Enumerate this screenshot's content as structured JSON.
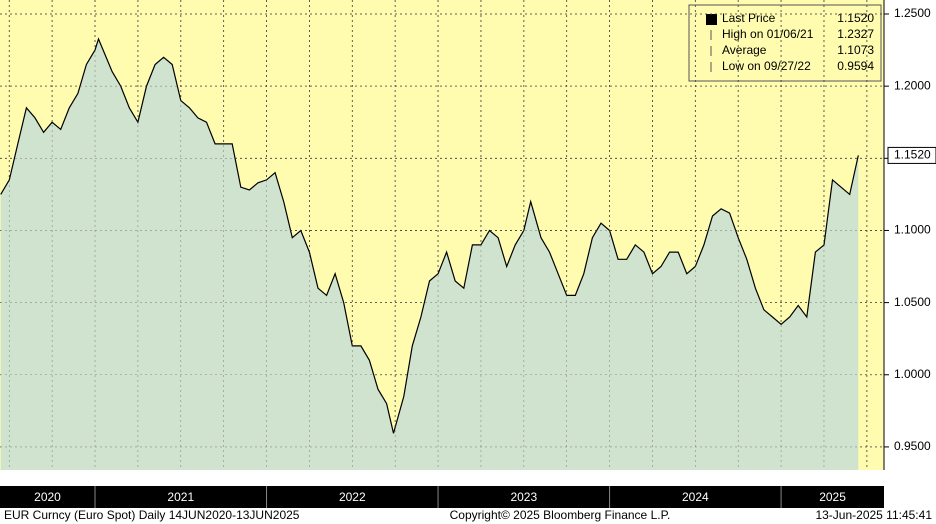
{
  "chart_data": {
    "type": "area",
    "x": [
      2020.45,
      2020.5,
      2020.55,
      2020.6,
      2020.65,
      2020.7,
      2020.75,
      2020.8,
      2020.85,
      2020.9,
      2020.95,
      2021.0,
      2021.02,
      2021.1,
      2021.15,
      2021.2,
      2021.25,
      2021.3,
      2021.35,
      2021.4,
      2021.45,
      2021.5,
      2021.55,
      2021.6,
      2021.65,
      2021.7,
      2021.75,
      2021.8,
      2021.85,
      2021.9,
      2021.95,
      2022.0,
      2022.05,
      2022.1,
      2022.15,
      2022.2,
      2022.25,
      2022.3,
      2022.35,
      2022.4,
      2022.45,
      2022.5,
      2022.55,
      2022.6,
      2022.65,
      2022.7,
      2022.74,
      2022.8,
      2022.85,
      2022.9,
      2022.95,
      2023.0,
      2023.05,
      2023.1,
      2023.15,
      2023.2,
      2023.25,
      2023.3,
      2023.35,
      2023.4,
      2023.45,
      2023.5,
      2023.54,
      2023.6,
      2023.65,
      2023.7,
      2023.75,
      2023.8,
      2023.85,
      2023.9,
      2023.95,
      2024.0,
      2024.05,
      2024.1,
      2024.15,
      2024.2,
      2024.25,
      2024.3,
      2024.35,
      2024.4,
      2024.45,
      2024.5,
      2024.55,
      2024.6,
      2024.65,
      2024.7,
      2024.75,
      2024.8,
      2024.85,
      2024.9,
      2024.95,
      2025.0,
      2025.05,
      2025.1,
      2025.15,
      2025.2,
      2025.25,
      2025.3,
      2025.35,
      2025.4,
      2025.45
    ],
    "series": [
      {
        "name": "Last Price",
        "color": "#000000",
        "fill": "#cfe3cf",
        "values": [
          1.125,
          1.135,
          1.16,
          1.185,
          1.178,
          1.168,
          1.175,
          1.17,
          1.185,
          1.195,
          1.215,
          1.225,
          1.2327,
          1.21,
          1.2,
          1.185,
          1.175,
          1.2,
          1.215,
          1.22,
          1.215,
          1.19,
          1.185,
          1.178,
          1.175,
          1.16,
          1.16,
          1.16,
          1.13,
          1.128,
          1.133,
          1.135,
          1.14,
          1.12,
          1.095,
          1.1,
          1.085,
          1.06,
          1.055,
          1.07,
          1.05,
          1.02,
          1.02,
          1.01,
          0.99,
          0.98,
          0.9594,
          0.985,
          1.02,
          1.04,
          1.065,
          1.07,
          1.085,
          1.065,
          1.06,
          1.09,
          1.09,
          1.1,
          1.095,
          1.075,
          1.09,
          1.1,
          1.12,
          1.095,
          1.085,
          1.07,
          1.055,
          1.055,
          1.07,
          1.095,
          1.105,
          1.1,
          1.08,
          1.08,
          1.09,
          1.085,
          1.07,
          1.075,
          1.085,
          1.085,
          1.07,
          1.075,
          1.09,
          1.11,
          1.115,
          1.112,
          1.095,
          1.08,
          1.06,
          1.045,
          1.04,
          1.035,
          1.04,
          1.048,
          1.04,
          1.085,
          1.09,
          1.135,
          1.13,
          1.125,
          1.152
        ]
      }
    ],
    "xlim": [
      2020.446,
      2025.6
    ],
    "xticks": [
      2020.5,
      2020.75,
      2021,
      2021.25,
      2021.5,
      2021.75,
      2022,
      2022.25,
      2022.5,
      2022.75,
      2023,
      2023.25,
      2023.5,
      2023.75,
      2024,
      2024.25,
      2024.5,
      2024.75,
      2025,
      2025.25,
      2025.5
    ],
    "categories": [
      "2020",
      "2021",
      "2022",
      "2023",
      "2024",
      "2025"
    ],
    "ylim": [
      0.934,
      1.2597
    ],
    "yticks": [
      {
        "value": 0.95,
        "label": "0.9500"
      },
      {
        "value": 1.0,
        "label": "1.0000"
      },
      {
        "value": 1.05,
        "label": "1.0500"
      },
      {
        "value": 1.1,
        "label": "1.1000"
      },
      {
        "value": 1.15,
        "label": "1.1500"
      },
      {
        "value": 1.2,
        "label": "1.2000"
      },
      {
        "value": 1.25,
        "label": "1.2500"
      }
    ],
    "grid": true,
    "legend": [
      {
        "name": "Last Price",
        "value": 1.152,
        "value_label": "1.1520"
      },
      {
        "name": "High on 01/06/21",
        "value": 1.2327,
        "value_label": "1.2327"
      },
      {
        "name": "Average",
        "value": 1.1073,
        "value_label": "1.1073"
      },
      {
        "name": "Low on 09/27/22",
        "value": 0.9594,
        "value_label": "0.9594"
      }
    ],
    "footer": {
      "left": "EUR Curncy (Euro Spot)  Daily 14JUN2020-13JUN2025",
      "center": "Copyright© 2025 Bloomberg Finance L.P.",
      "right": "13-Jun-2025 11:45:41"
    }
  }
}
